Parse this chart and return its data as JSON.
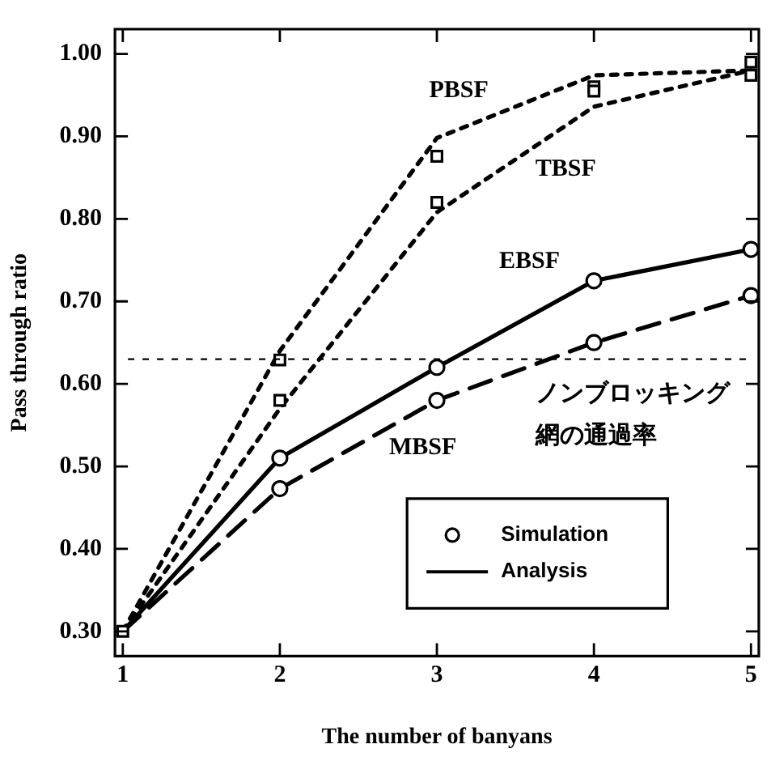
{
  "chart_data": {
    "type": "line",
    "xlabel": "The number of banyans",
    "ylabel": "Pass through ratio",
    "x": [
      1,
      2,
      3,
      4,
      5
    ],
    "xlim": [
      0.95,
      5.05
    ],
    "xticks": [
      1,
      2,
      3,
      4,
      5
    ],
    "ylim": [
      0.27,
      1.03
    ],
    "yticks": [
      {
        "value": 0.3,
        "label": "0.30"
      },
      {
        "value": 0.4,
        "label": "0.40"
      },
      {
        "value": 0.5,
        "label": "0.50"
      },
      {
        "value": 0.6,
        "label": "0.60"
      },
      {
        "value": 0.7,
        "label": "0.70"
      },
      {
        "value": 0.8,
        "label": "0.80"
      },
      {
        "value": 0.9,
        "label": "0.90"
      },
      {
        "value": 1.0,
        "label": "1.00"
      }
    ],
    "grid": false,
    "legend": "bottom right",
    "series": [
      {
        "color": "#000000",
        "line_style": "dotted",
        "marker": "none",
        "values": [
          0.3,
          0.64,
          0.898,
          0.974,
          0.98
        ]
      },
      {
        "color": "#000000",
        "line_style": "dotted",
        "marker": "none",
        "values": [
          0.3,
          0.57,
          0.808,
          0.936,
          0.98
        ]
      },
      {
        "name": "Analysis",
        "color": "#000000",
        "line_style": "solid",
        "marker": "none",
        "values": [
          0.3,
          0.51,
          0.62,
          0.725,
          0.763
        ]
      },
      {
        "color": "#000000",
        "line_style": "dashed",
        "marker": "none",
        "values": [
          0.3,
          0.473,
          0.58,
          0.65,
          0.707
        ]
      },
      {
        "type": "scatter",
        "color": "#000000",
        "marker": "square",
        "values": [
          0.3,
          0.629,
          0.876,
          0.96,
          0.974
        ]
      },
      {
        "type": "scatter",
        "color": "#000000",
        "marker": "square",
        "values": [
          null,
          0.58,
          0.82,
          0.955,
          0.99
        ]
      },
      {
        "type": "scatter",
        "name": "Simulation",
        "color": "#000000",
        "marker": "circle",
        "values": [
          null,
          0.51,
          0.62,
          0.725,
          0.763
        ]
      },
      {
        "type": "scatter",
        "color": "#000000",
        "marker": "circle",
        "values": [
          null,
          0.473,
          0.58,
          0.65,
          0.707
        ]
      }
    ],
    "ref_lines": [
      {
        "axis": "y",
        "value": 0.63,
        "label": "ノンブロッキング網の通過率",
        "line_style": "dotted"
      }
    ],
    "annotations": [
      "PBSF",
      "TBSF",
      "EBSF",
      "MBSF"
    ]
  }
}
